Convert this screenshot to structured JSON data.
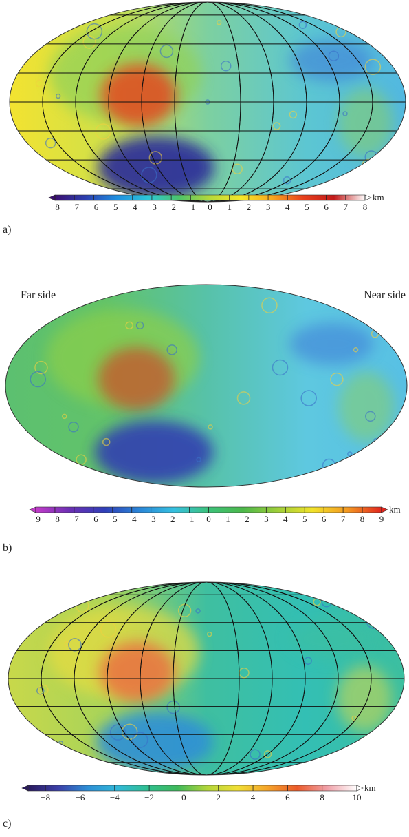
{
  "panels": [
    {
      "label": "a)",
      "colorbar": {
        "lim": [
          -8,
          8
        ],
        "unit": "km",
        "colormap": [
          "#3b0f70",
          "#2c3fb0",
          "#1f8fe0",
          "#2ec7d8",
          "#4cc46a",
          "#b6d93a",
          "#f5e829",
          "#f7a81f",
          "#e8401c",
          "#c21a1a",
          "#ffffff"
        ],
        "ticks": [
          {
            "value": -8,
            "label": "−8"
          },
          {
            "value": -7,
            "label": "−7"
          },
          {
            "value": -6,
            "label": "−6"
          },
          {
            "value": -5,
            "label": "−5"
          },
          {
            "value": -4,
            "label": "−4"
          },
          {
            "value": -3,
            "label": "−3"
          },
          {
            "value": -2,
            "label": "−2"
          },
          {
            "value": -1,
            "label": "−1"
          },
          0,
          1,
          2,
          3,
          4,
          5,
          6,
          7,
          8
        ]
      }
    },
    {
      "label": "b)",
      "left_label": "Far side",
      "right_label": "Near side",
      "colorbar": {
        "lim": [
          -9,
          9
        ],
        "unit": "km",
        "colormap": [
          "#c23bc9",
          "#6a2fb3",
          "#2f3fb8",
          "#2a86d8",
          "#36c0e0",
          "#3cc27a",
          "#4cb84a",
          "#9fcf3a",
          "#f1e22a",
          "#f49a22",
          "#e2261e"
        ],
        "ticks": [
          {
            "value": -9,
            "label": "−9"
          },
          {
            "value": -8,
            "label": "−8"
          },
          {
            "value": -7,
            "label": "−7"
          },
          {
            "value": -6,
            "label": "−6"
          },
          {
            "value": -5,
            "label": "−5"
          },
          {
            "value": -4,
            "label": "−4"
          },
          {
            "value": -3,
            "label": "−3"
          },
          {
            "value": -2,
            "label": "−2"
          },
          {
            "value": -1,
            "label": "−1"
          },
          0,
          1,
          2,
          3,
          4,
          5,
          6,
          7,
          8,
          9
        ]
      }
    },
    {
      "label": "c)",
      "colorbar": {
        "lim": [
          -9,
          10
        ],
        "unit": "km",
        "colormap": [
          "#2a1a5e",
          "#3b3fa8",
          "#2d8fd6",
          "#31b8d8",
          "#2fbf8f",
          "#3fb95a",
          "#b3d63a",
          "#f0df36",
          "#f5a52a",
          "#eb5a2a",
          "#f0a0a8",
          "#ffffff"
        ],
        "ticks": [
          {
            "value": -8,
            "label": "−8"
          },
          {
            "value": -6,
            "label": "−6"
          },
          {
            "value": -4,
            "label": "−4"
          },
          {
            "value": -2,
            "label": "−2"
          },
          0,
          2,
          4,
          6,
          8,
          10
        ]
      }
    }
  ]
}
